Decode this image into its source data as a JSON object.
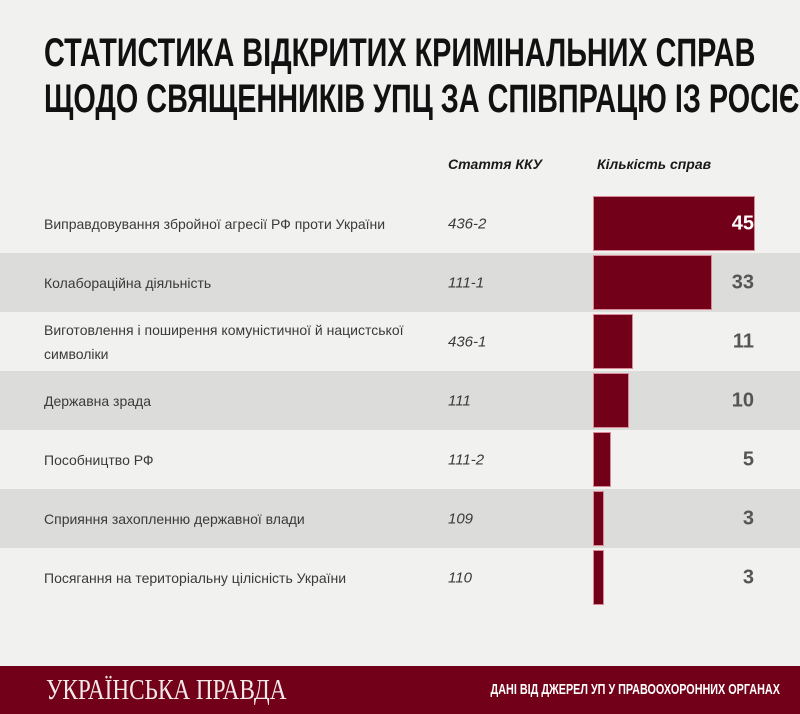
{
  "title": {
    "line1": "СТАТИСТИКА ВІДКРИТИХ КРИМІНАЛЬНИХ СПРАВ",
    "line2": "ЩОДО СВЯЩЕННИКІВ УПЦ ЗА СПІВПРАЦЮ ІЗ РОСІЄЮ"
  },
  "columns": {
    "article": "Стаття ККУ",
    "count": "Кількість справ"
  },
  "rows": [
    {
      "label": "Виправдовування збройної агресії РФ проти України",
      "article": "436-2",
      "value": "45"
    },
    {
      "label": "Колабораційна діяльність",
      "article": "111-1",
      "value": "33"
    },
    {
      "label": "Виготовлення і поширення комуністичної й нацистської символіки",
      "article": "436-1",
      "value": "11"
    },
    {
      "label": "Державна зрада",
      "article": "111",
      "value": "10"
    },
    {
      "label": "Пособництво РФ",
      "article": "111-2",
      "value": "5"
    },
    {
      "label": "Сприяння захопленню державної влади",
      "article": "109",
      "value": "3"
    },
    {
      "label": "Посягання на територіальну цілісність України",
      "article": "110",
      "value": "3"
    }
  ],
  "footer": {
    "brand": "УКРАЇНСЬКА ПРАВДА",
    "source": "ДАНІ ВІД ДЖЕРЕЛ УП У ПРАВООХОРОННИХ ОРГАНАХ"
  },
  "colors": {
    "bar": "#720018",
    "background": "#f1f1ef",
    "alt_row": "#dcdcda"
  },
  "chart_data": {
    "type": "bar",
    "orientation": "horizontal",
    "title": "Статистика відкритих кримінальних справ щодо священників УПЦ за співпрацю із Росією",
    "categories": [
      "Виправдовування збройної агресії РФ проти України",
      "Колабораційна діяльність",
      "Виготовлення і поширення комуністичної й нацистської символіки",
      "Державна зрада",
      "Пособництво РФ",
      "Сприяння захопленню державної влади",
      "Посягання на територіальну цілісність України"
    ],
    "articles": [
      "436-2",
      "111-1",
      "436-1",
      "111",
      "111-2",
      "109",
      "110"
    ],
    "values": [
      45,
      33,
      11,
      10,
      5,
      3,
      3
    ],
    "xlabel": "Кількість справ",
    "ylabel": "Стаття ККУ",
    "xlim": [
      0,
      45
    ],
    "grid": false,
    "legend": null,
    "source": "Дані від джерел УП у правоохоронних органах"
  }
}
